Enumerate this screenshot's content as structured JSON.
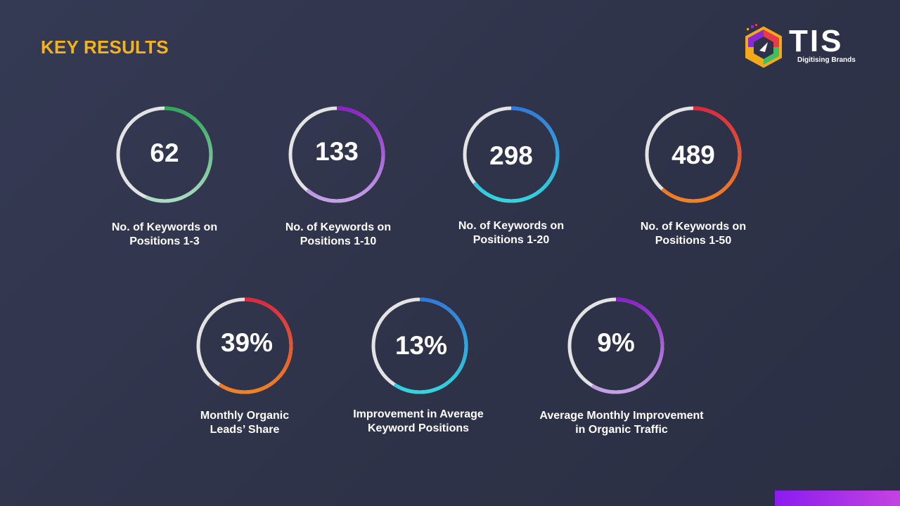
{
  "slide": {
    "title": "KEY RESULTS"
  },
  "logo": {
    "text": "TIS",
    "tagline": "Digitising Brands"
  },
  "metrics_row1": [
    {
      "value": "62",
      "label_line1": "No. of Keywords on",
      "label_line2": "Positions 1-3",
      "colors": [
        "#2fa85a",
        "#a6dcbf"
      ]
    },
    {
      "value": "133",
      "label_line1": "No. of Keywords on",
      "label_line2": "Positions 1-10",
      "colors": [
        "#8b21c9",
        "#c4a0e8"
      ]
    },
    {
      "value": "298",
      "label_line1": "No. of Keywords on",
      "label_line2": "Positions 1-20",
      "colors": [
        "#2e79de",
        "#2ed6de"
      ]
    },
    {
      "value": "489",
      "label_line1": "No. of Keywords on",
      "label_line2": "Positions 1-50",
      "colors": [
        "#e0283c",
        "#f4801e"
      ]
    }
  ],
  "metrics_row2": [
    {
      "value": "39%",
      "label_line1": "Monthly Organic",
      "label_line2": "Leads’ Share",
      "colors": [
        "#e0283c",
        "#f4801e"
      ]
    },
    {
      "value": "13%",
      "label_line1": "Improvement in Average",
      "label_line2": "Keyword Positions",
      "colors": [
        "#2e79de",
        "#2ed6de"
      ]
    },
    {
      "value": "9%",
      "label_line1": "Average Monthly Improvement",
      "label_line2": "in Organic Traffic",
      "colors": [
        "#8b21c9",
        "#c4a0e8"
      ]
    }
  ],
  "colors": {
    "title": "#f6b21a",
    "ring_track": "#e3e3e3",
    "background": "#30344b",
    "corner_bar": "#8b1cf0"
  }
}
